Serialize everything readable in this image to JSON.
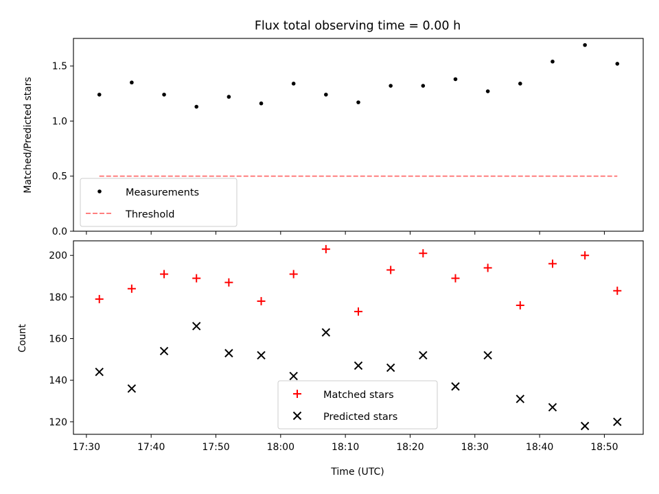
{
  "title": "Flux total observing time = 0.00 h",
  "colors": {
    "matched": "#ff0000",
    "predicted": "#000000",
    "threshold": "#ff7f7f",
    "measurement": "#000000"
  },
  "chart_data": [
    {
      "type": "scatter",
      "title": "Flux total observing time = 0.00 h",
      "xlabel": "",
      "ylabel": "Matched/Predicted stars",
      "ylim": [
        0,
        1.75
      ],
      "yticks": [
        "0.0",
        "0.5",
        "1.0",
        "1.5"
      ],
      "xlim": [
        "17:28",
        "18:56"
      ],
      "legend": {
        "position": "lower-left",
        "entries": [
          "Measurements",
          "Threshold"
        ]
      },
      "series": [
        {
          "name": "Measurements",
          "marker": "dot",
          "x": [
            "17:32",
            "17:37",
            "17:42",
            "17:47",
            "17:52",
            "17:57",
            "18:02",
            "18:07",
            "18:12",
            "18:17",
            "18:22",
            "18:27",
            "18:32",
            "18:37",
            "18:42",
            "18:47",
            "18:52"
          ],
          "y": [
            1.24,
            1.35,
            1.24,
            1.13,
            1.22,
            1.16,
            1.34,
            1.24,
            1.17,
            1.32,
            1.32,
            1.38,
            1.27,
            1.34,
            1.54,
            1.69,
            1.52
          ]
        },
        {
          "name": "Threshold",
          "marker": "dashed-line",
          "x": [
            "17:32",
            "18:52"
          ],
          "y": [
            0.5,
            0.5
          ]
        }
      ]
    },
    {
      "type": "scatter",
      "title": "",
      "xlabel": "Time (UTC)",
      "ylabel": "Count",
      "ylim": [
        114,
        207
      ],
      "yticks": [
        "120",
        "140",
        "160",
        "180",
        "200"
      ],
      "xlim": [
        "17:28",
        "18:56"
      ],
      "xticks": [
        "17:30",
        "17:40",
        "17:50",
        "18:00",
        "18:10",
        "18:20",
        "18:30",
        "18:40",
        "18:50"
      ],
      "legend": {
        "position": "lower-center",
        "entries": [
          "Matched stars",
          "Predicted stars"
        ]
      },
      "series": [
        {
          "name": "Matched stars",
          "marker": "plus",
          "x": [
            "17:32",
            "17:37",
            "17:42",
            "17:47",
            "17:52",
            "17:57",
            "18:02",
            "18:07",
            "18:12",
            "18:17",
            "18:22",
            "18:27",
            "18:32",
            "18:37",
            "18:42",
            "18:47",
            "18:52"
          ],
          "y": [
            179,
            184,
            191,
            189,
            187,
            178,
            191,
            203,
            173,
            193,
            201,
            189,
            194,
            176,
            196,
            200,
            183
          ]
        },
        {
          "name": "Predicted stars",
          "marker": "x",
          "x": [
            "17:32",
            "17:37",
            "17:42",
            "17:47",
            "17:52",
            "17:57",
            "18:02",
            "18:07",
            "18:12",
            "18:17",
            "18:22",
            "18:27",
            "18:32",
            "18:37",
            "18:42",
            "18:47",
            "18:52"
          ],
          "y": [
            144,
            136,
            154,
            166,
            153,
            152,
            142,
            163,
            147,
            146,
            152,
            137,
            152,
            131,
            127,
            118,
            120
          ]
        }
      ]
    }
  ]
}
